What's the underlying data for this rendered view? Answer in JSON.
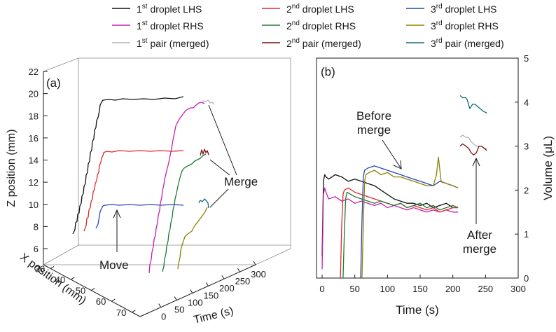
{
  "colors": {
    "d1_lhs": "#111111",
    "d1_rhs": "#c71fa8",
    "pair1": "#b5b5b5",
    "d2_lhs": "#e02828",
    "d2_rhs": "#1f7a36",
    "pair2": "#7a1010",
    "d3_lhs": "#2a44b8",
    "d3_rhs": "#8a8200",
    "pair3": "#0f6b73"
  },
  "legend": [
    {
      "ord": "1",
      "sup": "st",
      "label": " droplet LHS",
      "color_key": "d1_lhs"
    },
    {
      "ord": "2",
      "sup": "nd",
      "label": " droplet LHS",
      "color_key": "d2_lhs"
    },
    {
      "ord": "3",
      "sup": "rd",
      "label": " droplet LHS",
      "color_key": "d3_lhs"
    },
    {
      "ord": "1",
      "sup": "st",
      "label": " droplet RHS",
      "color_key": "d1_rhs"
    },
    {
      "ord": "2",
      "sup": "nd",
      "label": " droplet RHS",
      "color_key": "d2_rhs"
    },
    {
      "ord": "3",
      "sup": "rd",
      "label": " droplet RHS",
      "color_key": "d3_rhs"
    },
    {
      "ord": "1",
      "sup": "st",
      "label": " pair (merged)",
      "color_key": "pair1"
    },
    {
      "ord": "2",
      "sup": "nd",
      "label": " pair (merged)",
      "color_key": "pair2"
    },
    {
      "ord": "3",
      "sup": "rd",
      "label": " pair (merged)",
      "color_key": "pair3"
    }
  ],
  "chart_data": [
    {
      "panel": "(a)",
      "type": "line3d",
      "zlabel": "Z position (mm)",
      "xlabel": "X position (mm)",
      "tlabel": "Time (s)",
      "zlim": [
        6,
        22
      ],
      "z_ticks": [
        "6",
        "8",
        "10",
        "12",
        "14",
        "16",
        "18",
        "20",
        "22"
      ],
      "x_ticks": [
        "30",
        "40",
        "50",
        "60",
        "70"
      ],
      "t_ticks": [
        "0",
        "50",
        "100",
        "150",
        "200",
        "250",
        "300"
      ],
      "annotations": {
        "move": "Move",
        "merge": "Merge"
      },
      "series": [
        {
          "key": "d1_lhs",
          "name": "1st droplet LHS",
          "note": "rises ~7.5 to ~20 mm, then holds ~20 mm"
        },
        {
          "key": "d2_lhs",
          "name": "2nd droplet LHS",
          "note": "rises ~7.5 to ~15 mm, then holds ~15 mm"
        },
        {
          "key": "d3_lhs",
          "name": "3rd droplet LHS",
          "note": "rises to ~10.3 mm, then holds ~10.3 mm"
        },
        {
          "key": "d1_rhs",
          "name": "1st droplet RHS",
          "note": "rises to ~19.5 mm, merges"
        },
        {
          "key": "d2_rhs",
          "name": "2nd droplet RHS",
          "note": "rises to ~14.5 mm, merges"
        },
        {
          "key": "d3_rhs",
          "name": "3rd droplet RHS",
          "note": "rises to ~9.5 mm, merges"
        },
        {
          "key": "pair1",
          "name": "1st pair (merged)"
        },
        {
          "key": "pair2",
          "name": "2nd pair (merged)"
        },
        {
          "key": "pair3",
          "name": "3rd pair (merged)"
        }
      ]
    },
    {
      "panel": "(b)",
      "type": "line",
      "xlabel": "Time (s)",
      "ylabel": "Volume (μL)",
      "xlim": [
        0,
        300
      ],
      "ylim": [
        0,
        5
      ],
      "x_ticks": [
        "0",
        "50",
        "100",
        "150",
        "200",
        "250",
        "300"
      ],
      "y_ticks": [
        "0",
        "1",
        "2",
        "3",
        "4",
        "5"
      ],
      "annotations": {
        "before_1": "Before",
        "before_2": "merge",
        "after_1": "After",
        "after_2": "merge"
      },
      "series": [
        {
          "key": "d1_lhs",
          "name": "1st droplet LHS",
          "x": [
            0,
            2,
            4,
            6,
            10,
            20,
            30,
            40,
            50,
            60,
            70,
            80,
            90,
            100,
            110,
            120,
            130,
            140,
            150,
            160,
            170,
            180,
            190,
            200,
            208
          ],
          "y": [
            0.5,
            2.2,
            2.35,
            2.3,
            2.25,
            2.35,
            2.3,
            2.2,
            2.25,
            2.2,
            2.15,
            2.1,
            2.0,
            1.9,
            1.8,
            1.75,
            1.7,
            1.7,
            1.65,
            1.7,
            1.6,
            1.65,
            1.7,
            1.6,
            1.6
          ]
        },
        {
          "key": "d1_rhs",
          "name": "1st droplet RHS",
          "x": [
            0,
            2,
            4,
            6,
            10,
            20,
            30,
            40,
            50,
            60,
            70,
            80,
            90,
            100,
            110,
            120,
            130,
            140,
            150,
            160,
            170,
            180,
            190,
            200,
            208
          ],
          "y": [
            0.2,
            1.9,
            2.05,
            1.95,
            1.8,
            1.85,
            1.75,
            1.8,
            1.7,
            1.75,
            1.7,
            1.65,
            1.7,
            1.6,
            1.65,
            1.6,
            1.55,
            1.6,
            1.55,
            1.5,
            1.55,
            1.5,
            1.55,
            1.5,
            1.5
          ]
        },
        {
          "key": "d2_lhs",
          "name": "2nd droplet LHS",
          "x": [
            28,
            30,
            32,
            34,
            40,
            50,
            60,
            70,
            80,
            90,
            100,
            110,
            120,
            130,
            140,
            150,
            160,
            170,
            180,
            190,
            200,
            208
          ],
          "y": [
            0,
            1.2,
            1.9,
            2.0,
            2.05,
            1.95,
            1.9,
            1.85,
            1.8,
            1.75,
            1.7,
            1.65,
            1.7,
            1.6,
            1.65,
            1.6,
            1.55,
            1.6,
            1.5,
            1.55,
            1.6,
            1.6
          ]
        },
        {
          "key": "d2_rhs",
          "name": "2nd droplet RHS",
          "x": [
            32,
            34,
            36,
            38,
            44,
            50,
            60,
            70,
            80,
            90,
            100,
            110,
            120,
            130,
            140,
            150,
            160,
            170,
            180,
            190,
            200,
            208
          ],
          "y": [
            0,
            1.0,
            1.8,
            1.95,
            1.9,
            1.85,
            1.8,
            1.75,
            1.7,
            1.75,
            1.7,
            1.65,
            1.7,
            1.6,
            1.65,
            1.7,
            1.6,
            1.65,
            1.55,
            1.6,
            1.65,
            1.6
          ]
        },
        {
          "key": "d3_lhs",
          "name": "3rd droplet LHS",
          "x": [
            59,
            61,
            63,
            65,
            70,
            80,
            90,
            100,
            110,
            120,
            130,
            140,
            150,
            160,
            170,
            180,
            190,
            200,
            208
          ],
          "y": [
            0,
            1.3,
            2.3,
            2.45,
            2.5,
            2.55,
            2.5,
            2.45,
            2.4,
            2.35,
            2.3,
            2.25,
            2.2,
            2.15,
            2.1,
            2.2,
            2.15,
            2.1,
            2.05
          ]
        },
        {
          "key": "d3_rhs",
          "name": "3rd droplet RHS",
          "x": [
            61,
            63,
            65,
            67,
            72,
            80,
            90,
            100,
            110,
            120,
            130,
            140,
            150,
            160,
            170,
            175,
            178,
            182,
            190,
            200,
            208
          ],
          "y": [
            0,
            1.2,
            2.2,
            2.35,
            2.4,
            2.45,
            2.35,
            2.4,
            2.3,
            2.3,
            2.25,
            2.2,
            2.15,
            2.1,
            2.1,
            2.35,
            2.75,
            2.2,
            2.15,
            2.1,
            2.05
          ]
        },
        {
          "key": "pair1",
          "name": "1st pair (merged)",
          "x": [
            211,
            215,
            220,
            224,
            228,
            232,
            236,
            240,
            244,
            248,
            252
          ],
          "y": [
            3.2,
            3.25,
            3.2,
            3.2,
            3.1,
            3.05,
            3.0,
            3.0,
            3.0,
            2.95,
            2.95
          ]
        },
        {
          "key": "pair2",
          "name": "2nd pair (merged)",
          "x": [
            211,
            215,
            220,
            224,
            228,
            232,
            236,
            240,
            244,
            248,
            252
          ],
          "y": [
            3.0,
            3.05,
            3.0,
            2.95,
            2.85,
            2.8,
            2.85,
            3.0,
            3.0,
            2.95,
            2.9
          ]
        },
        {
          "key": "pair3",
          "name": "3rd pair (merged)",
          "x": [
            211,
            215,
            220,
            222,
            226,
            230,
            234,
            238,
            242,
            246,
            252
          ],
          "y": [
            4.15,
            4.1,
            4.1,
            4.05,
            3.85,
            3.95,
            3.95,
            3.9,
            3.85,
            3.8,
            3.75
          ]
        }
      ]
    }
  ]
}
